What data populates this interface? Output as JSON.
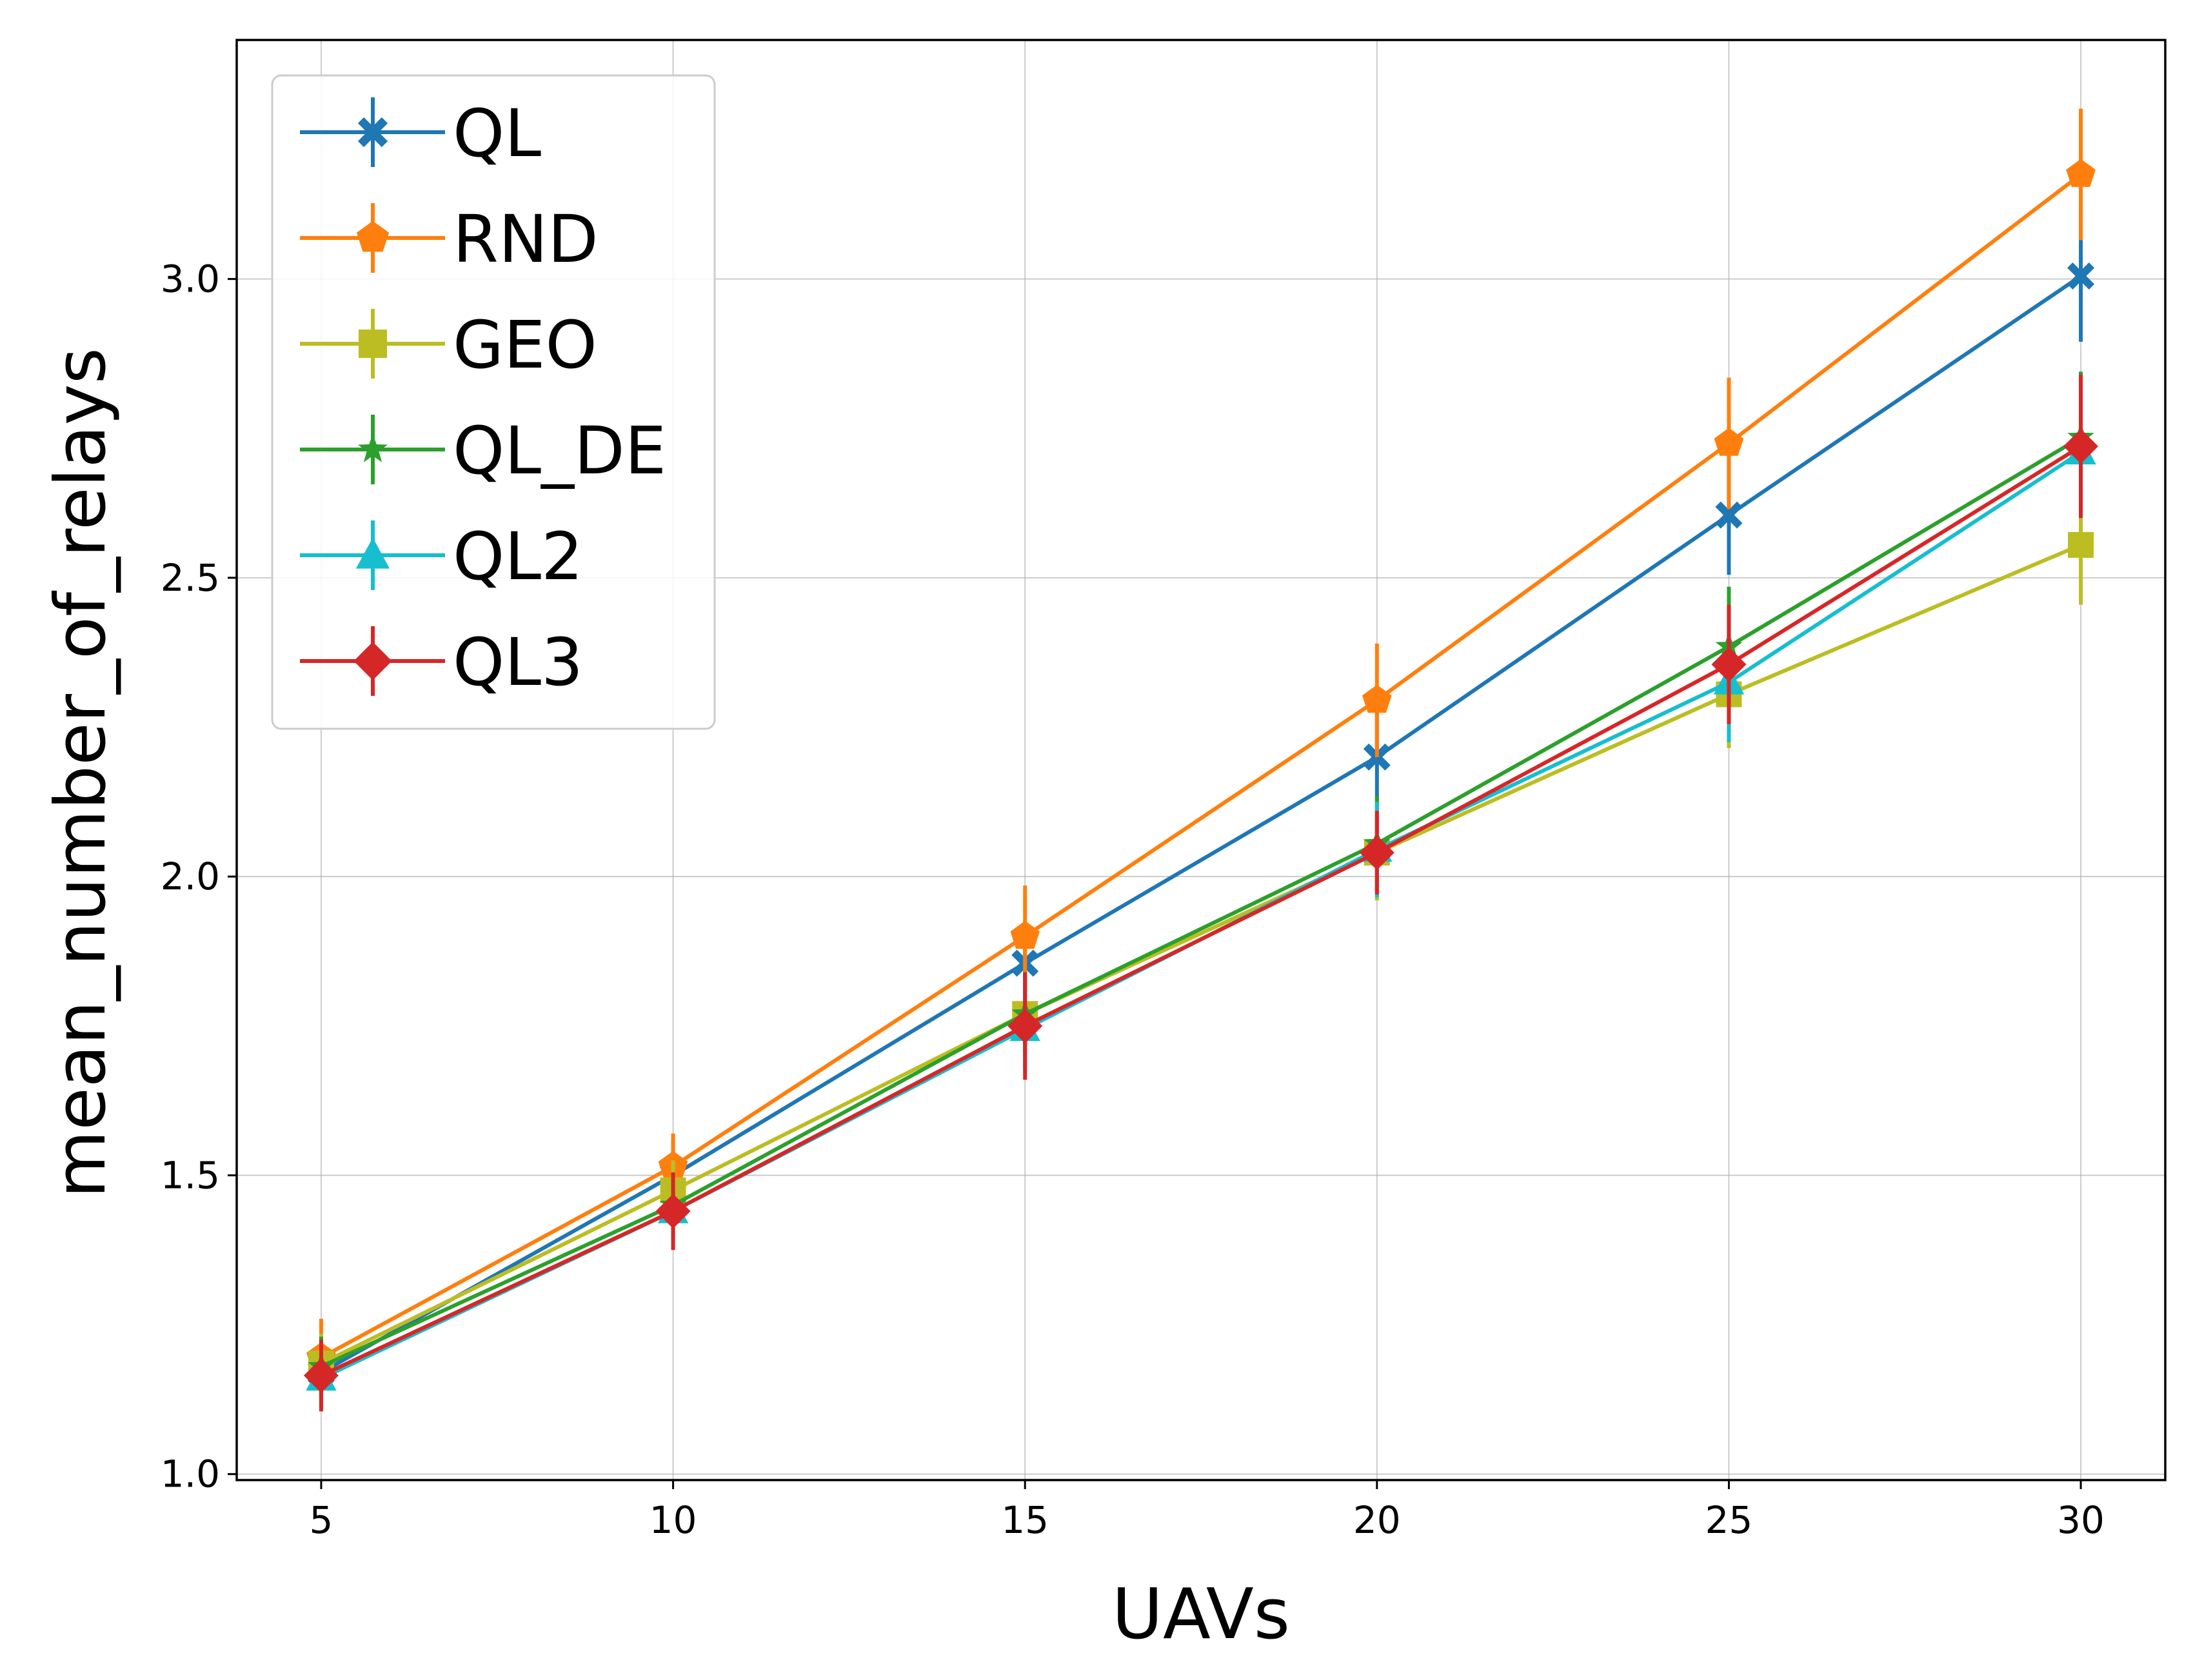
{
  "chart_data": {
    "type": "line",
    "title": "",
    "xlabel": "UAVs",
    "ylabel": "mean_number_of_relays",
    "x": [
      5,
      10,
      15,
      20,
      25,
      30
    ],
    "xticks": [
      "5",
      "10",
      "15",
      "20",
      "25",
      "30"
    ],
    "yticks": [
      "1.0",
      "1.5",
      "2.0",
      "2.5",
      "3.0"
    ],
    "xlim": [
      3.8,
      31.2
    ],
    "ylim": [
      0.99,
      3.4
    ],
    "grid": true,
    "legend_position": "top-left",
    "series": [
      {
        "name": "QL",
        "color": "#1f77b4",
        "marker": "x-filled",
        "values": [
          1.17,
          1.5,
          1.855,
          2.2,
          2.605,
          3.005
        ],
        "errors": [
          0.05,
          0.06,
          0.07,
          0.08,
          0.1,
          0.11
        ]
      },
      {
        "name": "RND",
        "color": "#ff7f0e",
        "marker": "pentagon",
        "values": [
          1.195,
          1.515,
          1.9,
          2.295,
          2.725,
          3.175
        ],
        "errors": [
          0.065,
          0.055,
          0.085,
          0.095,
          0.11,
          0.11
        ]
      },
      {
        "name": "GEO",
        "color": "#bcbd22",
        "marker": "square",
        "values": [
          1.185,
          1.475,
          1.77,
          2.04,
          2.305,
          2.555
        ],
        "errors": [
          0.05,
          0.05,
          0.06,
          0.08,
          0.09,
          0.1
        ]
      },
      {
        "name": "QL_DE",
        "color": "#2ca02c",
        "marker": "star",
        "values": [
          1.18,
          1.45,
          1.77,
          2.055,
          2.385,
          2.735
        ],
        "errors": [
          0.05,
          0.05,
          0.07,
          0.08,
          0.1,
          0.11
        ]
      },
      {
        "name": "QL2",
        "color": "#17becf",
        "marker": "triangle",
        "values": [
          1.16,
          1.44,
          1.745,
          2.045,
          2.325,
          2.71
        ],
        "errors": [
          0.05,
          0.05,
          0.07,
          0.08,
          0.1,
          0.11
        ]
      },
      {
        "name": "QL3",
        "color": "#d62728",
        "marker": "diamond",
        "values": [
          1.165,
          1.44,
          1.75,
          2.04,
          2.355,
          2.72
        ],
        "errors": [
          0.06,
          0.065,
          0.09,
          0.07,
          0.1,
          0.12
        ]
      }
    ]
  }
}
